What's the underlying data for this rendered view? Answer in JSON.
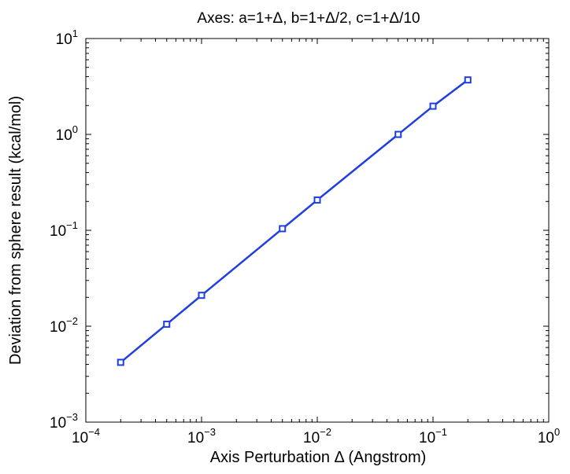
{
  "chart_data": {
    "type": "line",
    "title": "Axes: a=1+Δ, b=1+Δ/2, c=1+Δ/10",
    "xlabel": "Axis Perturbation Δ (Angstrom)",
    "ylabel": "Deviation from sphere result (kcal/mol)",
    "xscale": "log",
    "yscale": "log",
    "xlim": [
      0.0001,
      1
    ],
    "ylim": [
      0.001,
      10
    ],
    "grid": false,
    "legend": "none",
    "x_ticks": [
      {
        "value": 0.0001,
        "base": "10",
        "exp": "−4"
      },
      {
        "value": 0.001,
        "base": "10",
        "exp": "−3"
      },
      {
        "value": 0.01,
        "base": "10",
        "exp": "−2"
      },
      {
        "value": 0.1,
        "base": "10",
        "exp": "−1"
      },
      {
        "value": 1,
        "base": "10",
        "exp": "0"
      }
    ],
    "y_ticks": [
      {
        "value": 0.001,
        "base": "10",
        "exp": "−3"
      },
      {
        "value": 0.01,
        "base": "10",
        "exp": "−2"
      },
      {
        "value": 0.1,
        "base": "10",
        "exp": "−1"
      },
      {
        "value": 1,
        "base": "10",
        "exp": "0"
      },
      {
        "value": 10,
        "base": "10",
        "exp": "1"
      }
    ],
    "series": [
      {
        "color": "#1f3ee0",
        "marker": "square",
        "x": [
          0.0002,
          0.0005,
          0.001,
          0.005,
          0.01,
          0.05,
          0.1,
          0.2
        ],
        "y": [
          0.0042,
          0.0105,
          0.021,
          0.104,
          0.207,
          1.0,
          1.97,
          3.7
        ]
      }
    ]
  }
}
